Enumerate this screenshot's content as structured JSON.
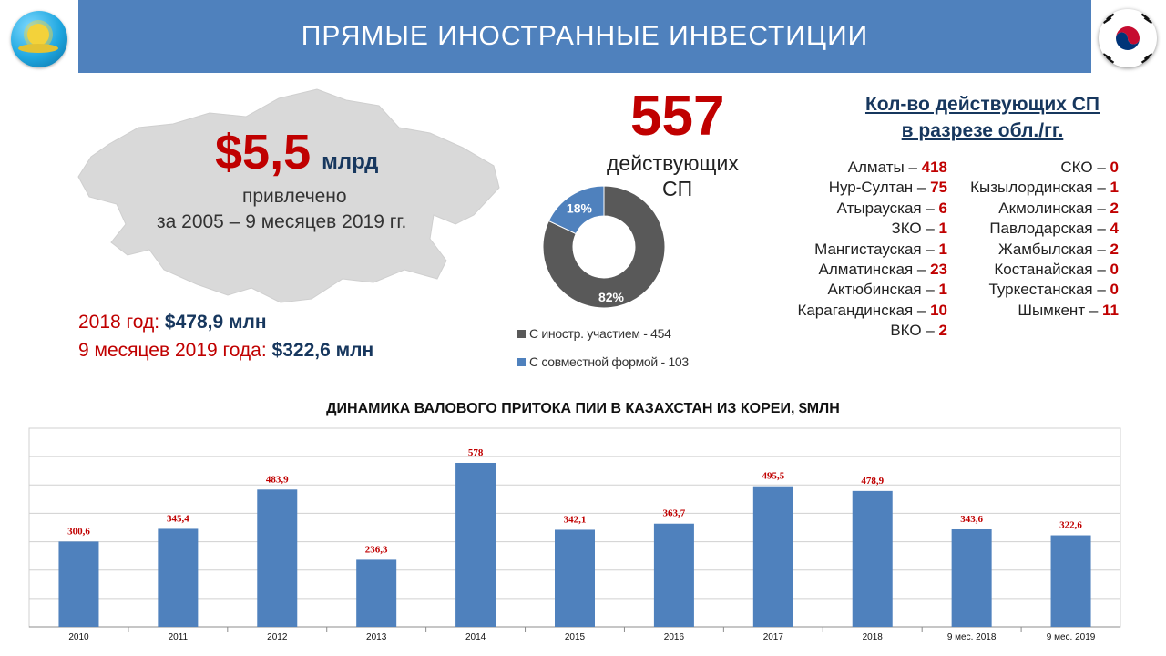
{
  "header": {
    "title": "ПРЯМЫЕ ИНОСТРАННЫЕ ИНВЕСТИЦИИ"
  },
  "summary": {
    "amount": "$5,5",
    "unit": "млрд",
    "line1": "привлечено",
    "line2": "за 2005 – 9 месяцев 2019 гг.",
    "year_2018_label": "2018 год:",
    "year_2018_value": "$478,9 млн",
    "nine_months_label": "9 месяцев 2019 года:",
    "nine_months_value": "$322,6 млн"
  },
  "joint_ventures": {
    "count": "557",
    "word1": "действующих",
    "word2": "СП",
    "donut": [
      {
        "label": "С иностр. участием - 454",
        "percent": 82,
        "percent_label": "82%",
        "color": "#595959"
      },
      {
        "label": "С совместной формой - 103",
        "percent": 18,
        "percent_label": "18%",
        "color": "#4f81bd"
      }
    ]
  },
  "regions": {
    "title_line1": "Кол-во действующих СП",
    "title_line2": "в разрезе обл./гг.",
    "left": [
      {
        "name": "Алматы",
        "count": "418"
      },
      {
        "name": "Нур-Султан",
        "count": "75"
      },
      {
        "name": "Атырауская",
        "count": "6"
      },
      {
        "name": "ЗКО",
        "count": "1"
      },
      {
        "name": "Мангистауская",
        "count": "1"
      },
      {
        "name": "Алматинская",
        "count": "23"
      },
      {
        "name": "Актюбинская",
        "count": "1"
      },
      {
        "name": "Карагандинская",
        "count": "10"
      },
      {
        "name": "ВКО",
        "count": "2"
      }
    ],
    "right": [
      {
        "name": "СКО",
        "count": "0"
      },
      {
        "name": "Кызылординская",
        "count": "1"
      },
      {
        "name": "Акмолинская",
        "count": "2"
      },
      {
        "name": "Павлодарская",
        "count": "4"
      },
      {
        "name": "Жамбылская",
        "count": "2"
      },
      {
        "name": "Костанайская",
        "count": "0"
      },
      {
        "name": "Туркестанская",
        "count": "0"
      },
      {
        "name": "Шымкент",
        "count": "11"
      }
    ]
  },
  "colors": {
    "header": "#4f81bd",
    "accent_red": "#c00000",
    "bar": "#4f81bd",
    "dark_slice": "#595959",
    "map": "#d9d9d9"
  },
  "chart_data": {
    "type": "bar",
    "title": "ДИНАМИКА ВАЛОВОГО ПРИТОКА ПИИ В КАЗАХСТАН ИЗ КОРЕИ, $МЛН",
    "categories": [
      "2010",
      "2011",
      "2012",
      "2013",
      "2014",
      "2015",
      "2016",
      "2017",
      "2018",
      "9 мес. 2018",
      "9 мес. 2019"
    ],
    "values": [
      300.6,
      345.4,
      483.9,
      236.3,
      578,
      342.1,
      363.7,
      495.5,
      478.9,
      343.6,
      322.6
    ],
    "value_labels": [
      "300,6",
      "345,4",
      "483,9",
      "236,3",
      "578",
      "342,1",
      "363,7",
      "495,5",
      "478,9",
      "343,6",
      "322,6"
    ],
    "xlabel": "",
    "ylabel": "",
    "ylim": [
      0,
      700
    ],
    "grid": true,
    "color": "#4f81bd",
    "label_color": "#c00000"
  }
}
